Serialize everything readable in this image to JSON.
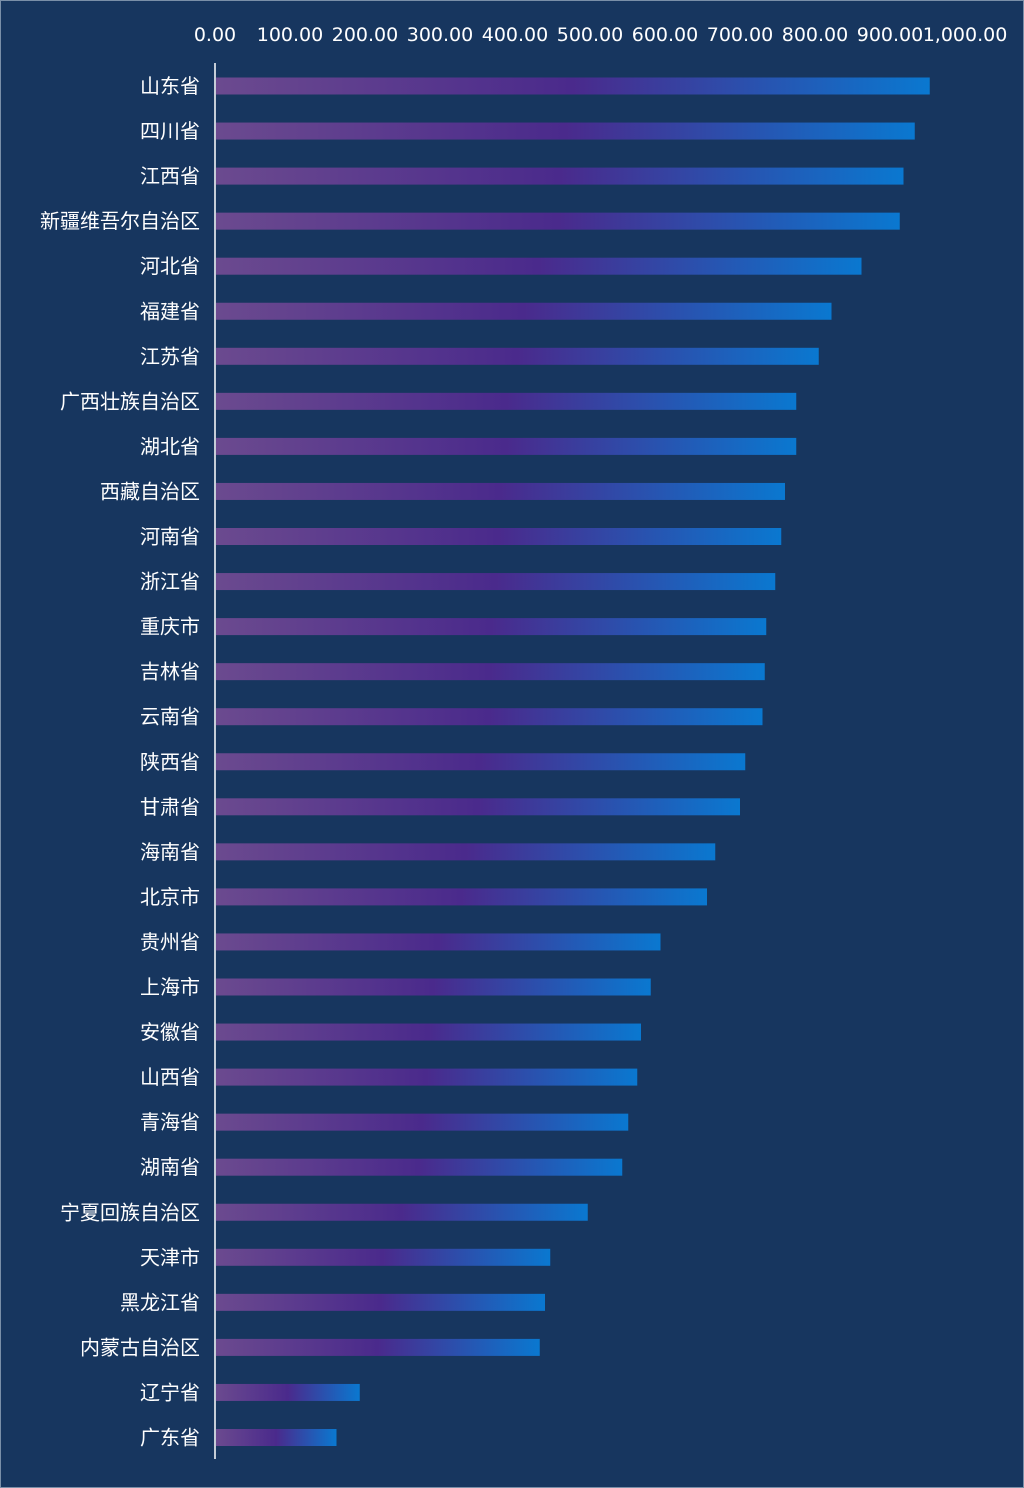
{
  "chart_data": {
    "type": "bar",
    "orientation": "horizontal",
    "title": "",
    "xlabel": "",
    "ylabel": "",
    "xlim": [
      0,
      1000
    ],
    "x_ticks": [
      "0.00",
      "100.00",
      "200.00",
      "300.00",
      "400.00",
      "500.00",
      "600.00",
      "700.00",
      "800.00",
      "900.00",
      "1,000.00"
    ],
    "x_axis_position": "top",
    "grid": false,
    "legend": "none",
    "categories": [
      "山东省",
      "四川省",
      "江西省",
      "新疆维吾尔自治区",
      "河北省",
      "福建省",
      "江苏省",
      "广西壮族自治区",
      "湖北省",
      "西藏自治区",
      "河南省",
      "浙江省",
      "重庆市",
      "吉林省",
      "云南省",
      "陕西省",
      "甘肃省",
      "海南省",
      "北京市",
      "贵州省",
      "上海市",
      "安徽省",
      "山西省",
      "青海省",
      "湖南省",
      "宁夏回族自治区",
      "天津市",
      "黑龙江省",
      "内蒙古自治区",
      "辽宁省",
      "广东省"
    ],
    "values": [
      953,
      933,
      918,
      913,
      862,
      822,
      805,
      775,
      775,
      760,
      755,
      747,
      735,
      733,
      730,
      707,
      700,
      667,
      656,
      594,
      581,
      568,
      563,
      551,
      543,
      497,
      447,
      440,
      433,
      193,
      162
    ],
    "colors": {
      "background": "#17365f",
      "bar_start": "#6b4a8f",
      "bar_mid": "#4a2a8c",
      "bar_end": "#0a78d0",
      "axis": "#ffffff",
      "text": "#ffffff"
    }
  }
}
